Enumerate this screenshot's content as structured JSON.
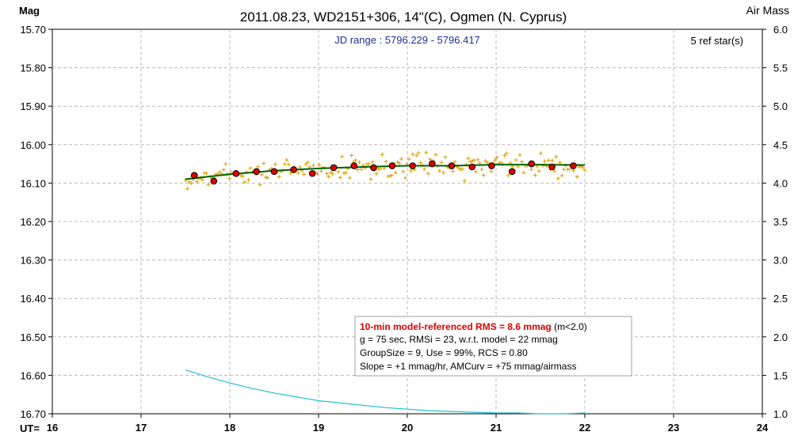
{
  "chart_data": {
    "type": "scatter",
    "title": "2011.08.23, WD2151+306, 14\"(C), Ogmen (N. Cyprus)",
    "subtitle": "JD range : 5796.229 - 5796.417",
    "ref_stars": "5 ref star(s)",
    "ylabel_left": "Mag",
    "ylabel_right": "Air Mass",
    "xlabel": "UT=",
    "xlim": [
      16,
      24
    ],
    "ylim_left": [
      16.7,
      15.7
    ],
    "ylim_right": [
      1.0,
      6.0
    ],
    "x_ticks": [
      "16",
      "17",
      "18",
      "19",
      "20",
      "21",
      "22",
      "23",
      "24"
    ],
    "y_left_ticks": [
      "15.70",
      "15.80",
      "15.90",
      "16.00",
      "16.10",
      "16.20",
      "16.30",
      "16.40",
      "16.50",
      "16.60",
      "16.70"
    ],
    "y_right_ticks": [
      "6.0",
      "5.5",
      "5.0",
      "4.5",
      "4.0",
      "3.5",
      "3.0",
      "2.5",
      "2.0",
      "1.5",
      "1.0"
    ],
    "grid": true,
    "colors": {
      "raw_points": "#d9a000",
      "binned_points": "#dd0000",
      "model_fit": "#006400",
      "airmass": "#20c0d0",
      "subtitle": "#1f2f8f",
      "rms_text": "#dd0000",
      "grid": "#b8b8b8"
    },
    "series": [
      {
        "kind": "binned",
        "x": [
          17.6,
          17.82,
          18.07,
          18.3,
          18.5,
          18.72,
          18.93,
          19.17,
          19.4,
          19.62,
          19.83,
          20.06,
          20.28,
          20.5,
          20.73,
          20.95,
          21.18,
          21.4,
          21.63,
          21.87
        ],
        "values": [
          16.08,
          16.095,
          16.075,
          16.07,
          16.07,
          16.065,
          16.075,
          16.06,
          16.055,
          16.06,
          16.055,
          16.055,
          16.05,
          16.055,
          16.058,
          16.055,
          16.07,
          16.05,
          16.058,
          16.055
        ]
      },
      {
        "kind": "model",
        "x": [
          17.5,
          18.0,
          18.5,
          19.0,
          19.5,
          20.0,
          20.5,
          21.0,
          21.5,
          22.0
        ],
        "values": [
          16.09,
          16.077,
          16.068,
          16.062,
          16.058,
          16.055,
          16.055,
          16.052,
          16.052,
          16.053
        ]
      },
      {
        "kind": "airmass",
        "axis": "right",
        "x": [
          17.5,
          17.75,
          18.0,
          18.25,
          18.5,
          18.75,
          19.0,
          19.25,
          19.5,
          19.75,
          20.0,
          20.25,
          20.5,
          20.75,
          21.0,
          21.25,
          21.5,
          21.75,
          22.0
        ],
        "values": [
          1.57,
          1.48,
          1.4,
          1.33,
          1.27,
          1.22,
          1.17,
          1.14,
          1.11,
          1.08,
          1.06,
          1.04,
          1.03,
          1.02,
          1.01,
          1.01,
          1.0,
          1.0,
          1.01
        ]
      }
    ],
    "info_box": {
      "line1_bold": "10-min model-referenced RMS = 8.6 mmag",
      "line1_rest": " (m<2.0)",
      "line2": "g = 75 sec, RMSi = 23, w.r.t. model = 22 mmag",
      "line3": "GroupSize = 9, Use = 99%, RCS = 0.80",
      "line4": "Slope = +1 mmag/hr, AMCurv = +75 mmag/airmass"
    }
  }
}
